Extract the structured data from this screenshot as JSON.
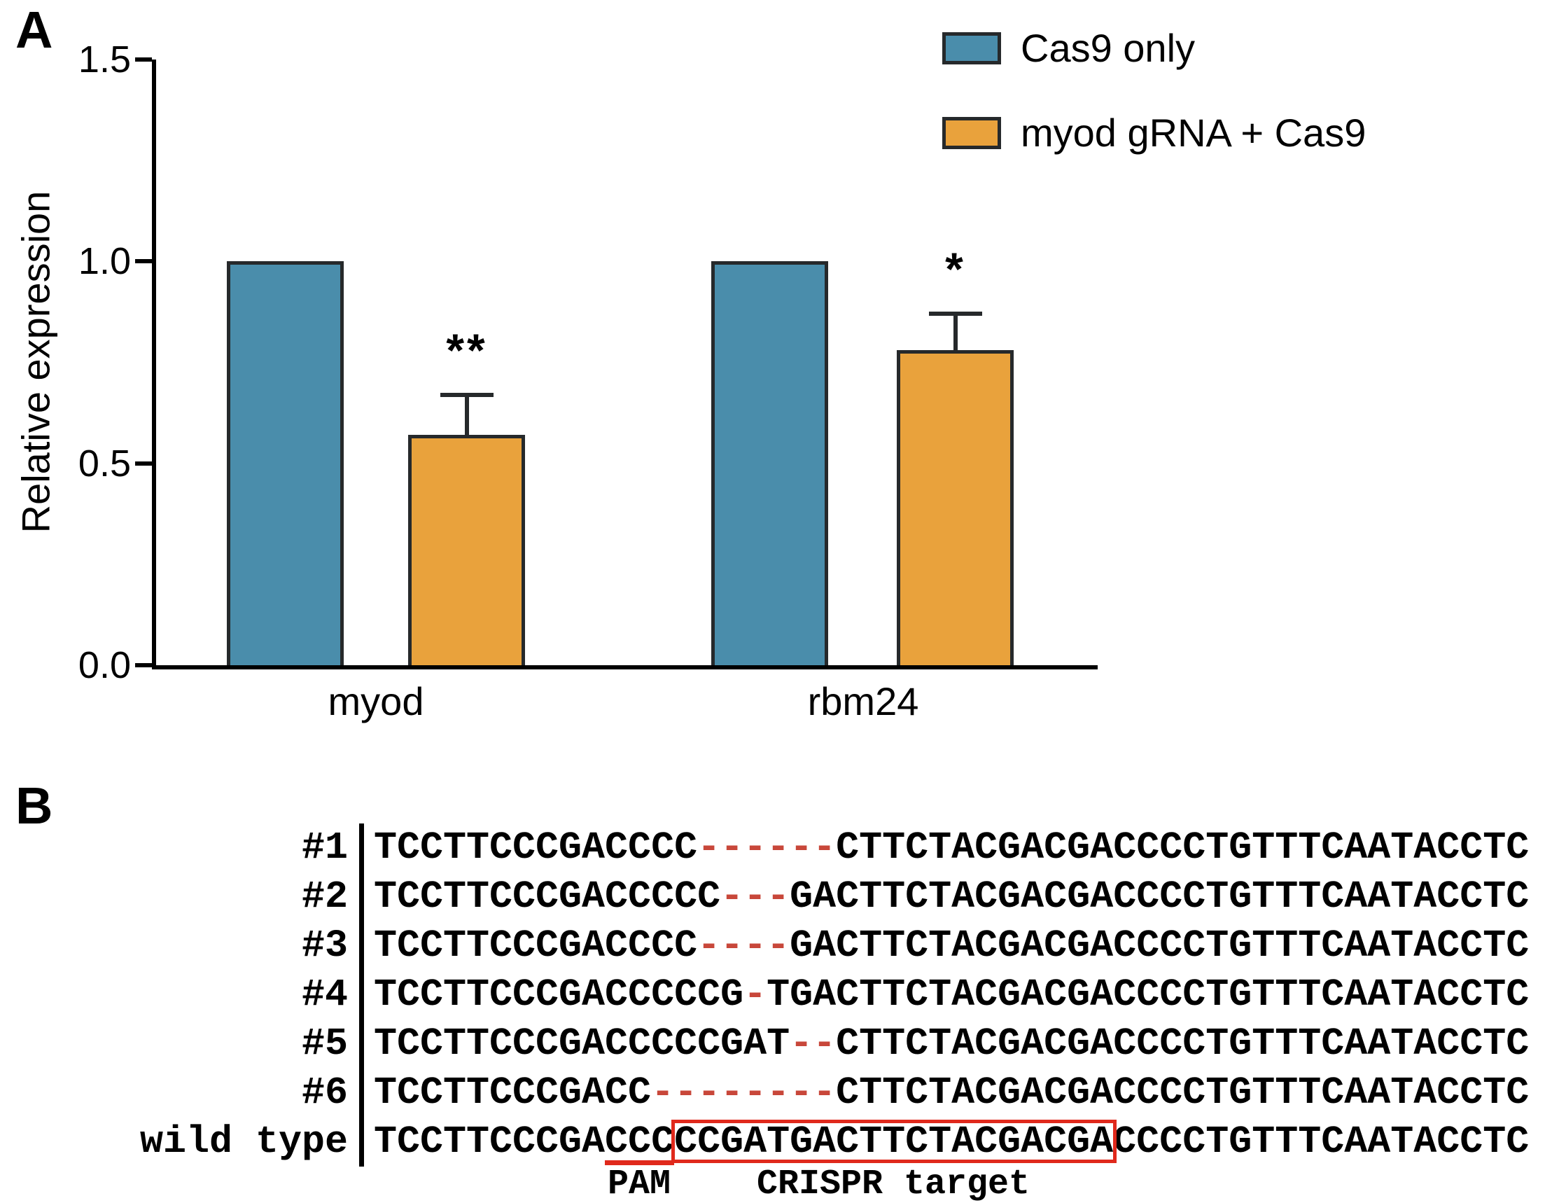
{
  "panels": {
    "a_label": "A",
    "b_label": "B"
  },
  "chart_data": {
    "type": "bar",
    "title": "",
    "ylabel": "Relative expression",
    "xlabel": "",
    "categories": [
      "myod",
      "rbm24"
    ],
    "series": [
      {
        "name": "Cas9 only",
        "color": "#4a8dab",
        "values": [
          1.0,
          1.0
        ]
      },
      {
        "name": "myod gRNA + Cas9",
        "color": "#e9a23c",
        "values": [
          0.57,
          0.78
        ],
        "errors_upper": [
          0.1,
          0.09
        ],
        "significance": [
          "**",
          "*"
        ]
      }
    ],
    "yticks": [
      "1.5",
      "1.0",
      "0.5",
      "0.0"
    ],
    "ytick_values": [
      1.5,
      1.0,
      0.5,
      0.0
    ],
    "ylim": [
      0,
      1.5
    ],
    "grid": false,
    "legend_position": "top-right",
    "bar_outline_color": "#26292b"
  },
  "alignment": {
    "dash_color": "#c8473a",
    "highlight_color": "#e0291c",
    "rows": [
      {
        "label": "#1",
        "seq": "TCCTTCCCGACCCC------CTTCTACGACGACCCCTGTTTCAATACCTC"
      },
      {
        "label": "#2",
        "seq": "TCCTTCCCGACCCCC---GACTTCTACGACGACCCCTGTTTCAATACCTC"
      },
      {
        "label": "#3",
        "seq": "TCCTTCCCGACCCC----GACTTCTACGACGACCCCTGTTTCAATACCTC"
      },
      {
        "label": "#4",
        "seq": "TCCTTCCCGACCCCCG-TGACTTCTACGACGACCCCTGTTTCAATACCTC"
      },
      {
        "label": "#5",
        "seq": "TCCTTCCCGACCCCCGAT--CTTCTACGACGACCCCTGTTTCAATACCTC"
      },
      {
        "label": "#6",
        "seq": "TCCTTCCCGACC--------CTTCTACGACGACCCCTGTTTCAATACCTC"
      },
      {
        "label": "wild type",
        "seq": "TCCTTCCCGACCCCCGATGACTTCTACGACGACCCCTGTTTCAATACCTC",
        "wild_type": true
      }
    ],
    "pam": {
      "label": "PAM",
      "start": 10,
      "length": 3
    },
    "crispr_target": {
      "label": "CRISPR target",
      "start": 13,
      "length": 19
    }
  }
}
